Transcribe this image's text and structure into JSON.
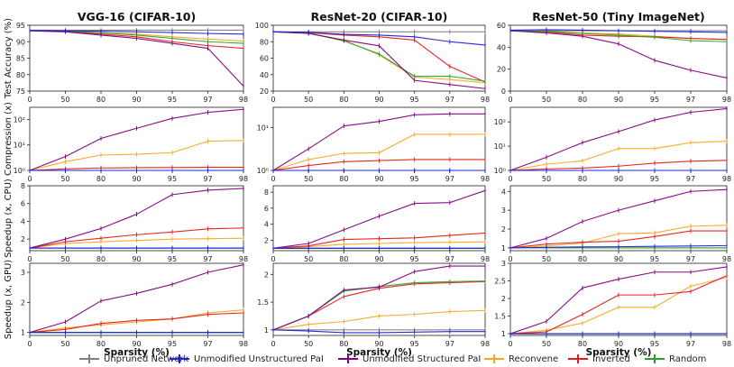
{
  "chart_data": {
    "type": "line",
    "x": [
      0,
      50,
      80,
      90,
      95,
      97,
      98
    ],
    "xlabel": "Sparsity (%)",
    "column_titles": [
      "VGG-16 (CIFAR-10)",
      "ResNet-20 (CIFAR-10)",
      "ResNet-50 (Tiny ImageNet)"
    ],
    "row_ylabels": [
      "Test Accuracy (%)",
      "Compression (x)",
      "Speedup (x, CPU)",
      "Speedup (x, GPU)"
    ],
    "series_names": [
      "Unpruned Network",
      "Unmodified Unstructured PaI",
      "Unmodified Structured PaI",
      "Reconvene",
      "Inverted",
      "Random"
    ],
    "series_colors": [
      "#808080",
      "#1f1fd6",
      "#800080",
      "#f5a623",
      "#e41a1c",
      "#2ca02c"
    ],
    "panels": [
      {
        "row": 0,
        "col": 0,
        "scale": "linear",
        "ylim": [
          75,
          95
        ],
        "yticks": [
          75,
          80,
          85,
          90,
          95
        ],
        "series": [
          [
            93.5,
            93.5,
            93.5,
            93.5,
            93.5,
            93.5,
            93.5
          ],
          [
            93.4,
            93.3,
            93.2,
            93,
            92.8,
            92.5,
            92.3
          ],
          [
            93.3,
            93,
            92,
            91,
            89.5,
            88,
            76.5
          ],
          [
            93.4,
            93.2,
            92.8,
            92.3,
            91.5,
            90.8,
            90.2
          ],
          [
            93.4,
            93.1,
            92.3,
            91.5,
            90,
            88.8,
            88
          ],
          [
            93.4,
            93.2,
            92.7,
            92,
            91,
            90,
            89.5
          ]
        ]
      },
      {
        "row": 0,
        "col": 1,
        "scale": "linear",
        "ylim": [
          20,
          100
        ],
        "yticks": [
          20,
          40,
          60,
          80,
          100
        ],
        "series": [
          [
            92,
            92,
            92,
            92,
            92,
            92,
            92
          ],
          [
            92,
            91.5,
            89,
            88,
            86,
            80,
            76
          ],
          [
            92,
            90,
            82,
            75,
            33,
            28,
            23
          ],
          [
            92,
            90.5,
            82,
            64,
            37,
            34,
            30
          ],
          [
            92,
            91,
            88,
            86,
            82,
            50,
            31
          ],
          [
            92,
            90.5,
            81,
            65,
            38,
            38,
            32
          ]
        ]
      },
      {
        "row": 0,
        "col": 2,
        "scale": "linear",
        "ylim": [
          0,
          60
        ],
        "yticks": [
          0,
          20,
          40,
          60
        ],
        "series": [
          [
            55,
            55,
            55,
            55,
            55,
            55,
            55
          ],
          [
            55.5,
            56,
            55.5,
            55,
            54.5,
            54,
            53.5
          ],
          [
            55,
            53,
            50,
            43,
            28,
            19,
            12
          ],
          [
            55,
            54.5,
            53,
            52,
            50,
            48,
            47
          ],
          [
            55,
            54,
            51,
            50,
            49.5,
            48,
            47
          ],
          [
            55,
            54.5,
            52.5,
            51,
            49,
            46,
            45
          ]
        ]
      },
      {
        "row": 1,
        "col": 0,
        "scale": "log",
        "ylim": [
          1,
          300
        ],
        "ytickvals": [
          1,
          10,
          100
        ],
        "yticks": [
          "10⁰",
          "10¹",
          "10²"
        ],
        "series": [
          [
            1,
            1,
            1,
            1,
            1,
            1,
            1
          ],
          [
            1,
            1,
            1,
            1,
            1,
            1,
            1
          ],
          [
            1,
            3.5,
            18,
            45,
            110,
            190,
            250
          ],
          [
            1,
            2.2,
            4,
            4.3,
            5,
            14,
            15
          ],
          [
            1,
            1.15,
            1.25,
            1.28,
            1.3,
            1.32,
            1.32
          ],
          [
            1,
            1,
            1,
            1,
            1,
            1,
            1
          ]
        ]
      },
      {
        "row": 1,
        "col": 1,
        "scale": "log",
        "ylim": [
          1,
          30
        ],
        "ytickvals": [
          1,
          10
        ],
        "yticks": [
          "10⁰",
          "10¹"
        ],
        "series": [
          [
            1,
            1,
            1,
            1,
            1,
            1,
            1
          ],
          [
            1,
            1,
            1,
            1,
            1,
            1,
            1
          ],
          [
            1,
            3.2,
            11,
            14,
            20,
            21,
            21
          ],
          [
            1,
            1.8,
            2.5,
            2.6,
            7,
            7,
            7
          ],
          [
            1,
            1.3,
            1.6,
            1.7,
            1.8,
            1.8,
            1.8
          ],
          [
            1,
            1,
            1,
            1,
            1,
            1,
            1
          ]
        ]
      },
      {
        "row": 1,
        "col": 2,
        "scale": "log",
        "ylim": [
          1,
          400
        ],
        "ytickvals": [
          1,
          10,
          100
        ],
        "yticks": [
          "10⁰",
          "10¹",
          "10²"
        ],
        "series": [
          [
            1,
            1,
            1,
            1,
            1,
            1,
            1
          ],
          [
            1,
            1,
            1,
            1,
            1,
            1,
            1
          ],
          [
            1,
            3.5,
            14,
            40,
            120,
            250,
            350
          ],
          [
            1,
            1.8,
            2.5,
            8,
            8,
            14,
            16
          ],
          [
            1,
            1.15,
            1.25,
            1.5,
            2,
            2.4,
            2.6
          ],
          [
            1,
            1,
            1,
            1,
            1,
            1,
            1
          ]
        ]
      },
      {
        "row": 2,
        "col": 0,
        "scale": "linear",
        "ylim": [
          0.7,
          8
        ],
        "yticks": [
          2,
          4,
          6,
          8
        ],
        "series": [
          [
            1,
            1,
            1,
            1,
            1,
            1,
            1
          ],
          [
            1,
            1,
            1,
            1,
            1,
            1,
            1
          ],
          [
            1,
            2,
            3.2,
            4.8,
            7,
            7.5,
            7.7
          ],
          [
            1,
            1.5,
            1.7,
            1.85,
            2,
            2.05,
            2.1
          ],
          [
            1,
            1.7,
            2.1,
            2.5,
            2.8,
            3.15,
            3.25
          ],
          [
            1,
            1,
            1,
            1,
            1,
            1,
            1
          ]
        ]
      },
      {
        "row": 2,
        "col": 1,
        "scale": "linear",
        "ylim": [
          0.7,
          8.8
        ],
        "yticks": [
          2,
          4,
          6,
          8
        ],
        "series": [
          [
            1,
            1,
            1,
            1,
            1,
            1,
            1
          ],
          [
            1,
            1,
            1,
            1,
            1,
            1,
            1
          ],
          [
            1,
            1.6,
            3.3,
            5,
            6.6,
            6.7,
            8.2
          ],
          [
            1,
            1.2,
            1.5,
            1.6,
            1.7,
            1.75,
            1.8
          ],
          [
            1,
            1.3,
            2.1,
            2.2,
            2.3,
            2.6,
            2.9
          ],
          [
            1,
            1,
            1,
            1,
            1,
            1,
            1
          ]
        ]
      },
      {
        "row": 2,
        "col": 2,
        "scale": "linear",
        "ylim": [
          0.85,
          4.3
        ],
        "yticks": [
          1,
          2,
          3,
          4
        ],
        "series": [
          [
            1,
            1,
            1,
            1,
            1,
            1,
            1
          ],
          [
            1,
            1.03,
            1.05,
            1.06,
            1.08,
            1.1,
            1.12
          ],
          [
            1,
            1.5,
            2.4,
            3,
            3.5,
            4,
            4.1
          ],
          [
            1,
            1.1,
            1.25,
            1.75,
            1.8,
            2.15,
            2.2
          ],
          [
            1,
            1.2,
            1.3,
            1.35,
            1.6,
            1.9,
            1.9
          ],
          [
            1,
            1,
            1,
            1,
            1,
            1,
            1
          ]
        ]
      },
      {
        "row": 3,
        "col": 0,
        "scale": "linear",
        "ylim": [
          0.9,
          3.3
        ],
        "yticks": [
          1,
          2,
          3
        ],
        "series": [
          [
            1,
            1,
            1,
            1,
            1,
            1,
            1
          ],
          [
            1,
            1,
            1,
            1,
            1,
            1,
            1
          ],
          [
            1,
            1.35,
            2.05,
            2.3,
            2.6,
            3,
            3.25
          ],
          [
            1,
            1.15,
            1.25,
            1.35,
            1.45,
            1.65,
            1.75
          ],
          [
            1,
            1.1,
            1.3,
            1.4,
            1.45,
            1.6,
            1.65
          ],
          [
            1,
            1,
            1,
            1,
            1,
            1,
            1
          ]
        ]
      },
      {
        "row": 3,
        "col": 1,
        "scale": "linear",
        "ylim": [
          0.9,
          2.2
        ],
        "yticks": [
          1.0,
          1.5,
          2.0
        ],
        "series": [
          [
            1,
            1,
            1,
            1,
            1,
            1,
            1
          ],
          [
            1,
            0.98,
            0.95,
            0.95,
            0.96,
            0.97,
            0.97
          ],
          [
            1,
            1.25,
            1.72,
            1.77,
            2.05,
            2.15,
            2.15
          ],
          [
            1,
            1.1,
            1.15,
            1.25,
            1.28,
            1.33,
            1.35
          ],
          [
            1,
            1.25,
            1.6,
            1.75,
            1.83,
            1.85,
            1.87
          ],
          [
            1,
            1.25,
            1.7,
            1.78,
            1.85,
            1.87,
            1.88
          ]
        ]
      },
      {
        "row": 3,
        "col": 2,
        "scale": "linear",
        "ylim": [
          0.95,
          3.0
        ],
        "yticks": [
          1.0,
          1.5,
          2.0,
          2.5,
          3.0
        ],
        "series": [
          [
            1,
            1,
            1,
            1,
            1,
            1,
            1
          ],
          [
            1,
            1,
            1,
            1,
            1,
            1,
            1
          ],
          [
            1,
            1.35,
            2.3,
            2.55,
            2.75,
            2.75,
            2.9
          ],
          [
            1,
            1.1,
            1.3,
            1.75,
            1.75,
            2.35,
            2.6
          ],
          [
            1,
            1.05,
            1.55,
            2.1,
            2.1,
            2.2,
            2.65
          ],
          [
            1,
            1,
            1,
            1,
            1,
            1,
            1
          ]
        ]
      }
    ]
  }
}
